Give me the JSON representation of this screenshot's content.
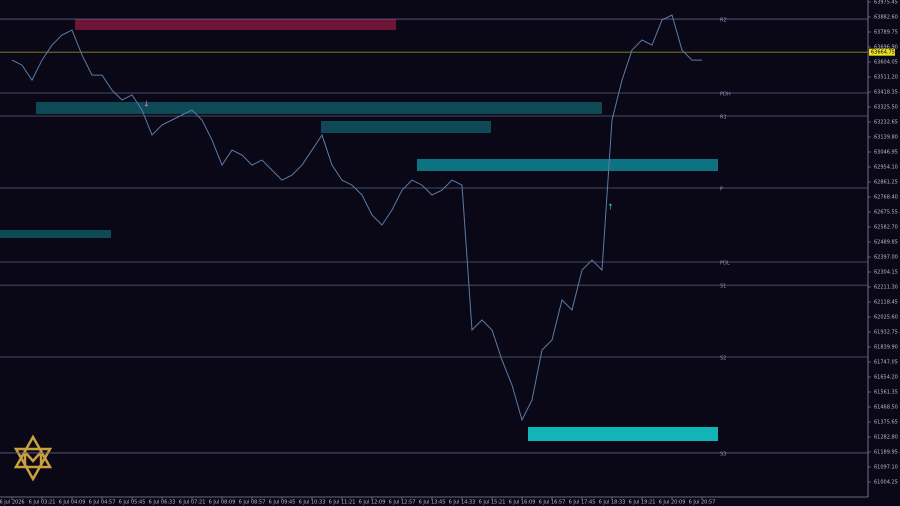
{
  "chart_data": {
    "type": "line",
    "categories": [
      "6 Jul 2026",
      null,
      null,
      "6 Jul 03:21",
      null,
      null,
      "6 Jul 04:09",
      null,
      null,
      "6 Jul 04:57",
      null,
      null,
      "6 Jul 05:45",
      null,
      null,
      "6 Jul 06:33",
      null,
      null,
      "6 Jul 07:21",
      null,
      null,
      "6 Jul 08:09",
      null,
      null,
      "6 Jul 08:57",
      null,
      null,
      "6 Jul 09:45",
      null,
      null,
      "6 Jul 10:33",
      null,
      null,
      "6 Jul 11:21",
      null,
      null,
      "6 Jul 12:09",
      null,
      null,
      "6 Jul 12:57",
      null,
      null,
      "6 Jul 13:45",
      null,
      null,
      "6 Jul 14:33",
      null,
      null,
      "6 Jul 15:21",
      null,
      null,
      "6 Jul 16:09",
      null,
      null,
      "6 Jul 16:57",
      null,
      null,
      "6 Jul 17:45",
      null,
      null,
      "6 Jul 18:33",
      null,
      null,
      "6 Jul 19:21",
      null,
      null,
      "6 Jul 20:09",
      null,
      null,
      "6 Jul 20:57"
    ],
    "values": [
      63616,
      63585,
      63492,
      63616,
      63709,
      63771,
      63802,
      63647,
      63523,
      63523,
      63430,
      63369,
      63400,
      63307,
      63152,
      63214,
      63245,
      63276,
      63307,
      63245,
      63121,
      62966,
      63059,
      63028,
      62966,
      62997,
      62935,
      62873,
      62904,
      62966,
      63059,
      63152,
      62966,
      62873,
      62842,
      62781,
      62657,
      62595,
      62688,
      62811,
      62873,
      62842,
      62781,
      62811,
      62873,
      62842,
      61945,
      62007,
      61945,
      61759,
      61604,
      61388,
      61512,
      61821,
      61883,
      62131,
      62069,
      62316,
      62378,
      62316,
      63245,
      63492,
      63678,
      63740,
      63709,
      63864,
      63895,
      63678,
      63616,
      63616
    ],
    "color": "#5b7ba8",
    "ylim": [
      60911.4,
      63987.85
    ],
    "yticks": [
      {
        "value": 61004.25,
        "label": "61004.25"
      },
      {
        "value": 61097.1,
        "label": "61097.10"
      },
      {
        "value": 61189.95,
        "label": "61189.95"
      },
      {
        "value": 61282.8,
        "label": "61282.80"
      },
      {
        "value": 61375.65,
        "label": "61375.65"
      },
      {
        "value": 61468.5,
        "label": "61468.50"
      },
      {
        "value": 61561.35,
        "label": "61561.35"
      },
      {
        "value": 61654.2,
        "label": "61654.20"
      },
      {
        "value": 61747.05,
        "label": "61747.05"
      },
      {
        "value": 61839.9,
        "label": "61839.90"
      },
      {
        "value": 61932.75,
        "label": "61932.75"
      },
      {
        "value": 62025.6,
        "label": "62025.60"
      },
      {
        "value": 62118.45,
        "label": "62118.45"
      },
      {
        "value": 62211.3,
        "label": "62211.30"
      },
      {
        "value": 62304.15,
        "label": "62304.15"
      },
      {
        "value": 62397,
        "label": "62397.00"
      },
      {
        "value": 62489.85,
        "label": "62489.85"
      },
      {
        "value": 62582.7,
        "label": "62582.70"
      },
      {
        "value": 62675.55,
        "label": "62675.55"
      },
      {
        "value": 62768.4,
        "label": "62768.40"
      },
      {
        "value": 62861.25,
        "label": "62861.25"
      },
      {
        "value": 62954.1,
        "label": "62954.10"
      },
      {
        "value": 63046.95,
        "label": "63046.95"
      },
      {
        "value": 63139.8,
        "label": "63139.80"
      },
      {
        "value": 63232.65,
        "label": "63232.65"
      },
      {
        "value": 63325.5,
        "label": "63325.50"
      },
      {
        "value": 63418.35,
        "label": "63418.35"
      },
      {
        "value": 63511.2,
        "label": "63511.20"
      },
      {
        "value": 63604.05,
        "label": "63604.05"
      },
      {
        "value": 63696.9,
        "label": "63696.90"
      },
      {
        "value": 63789.75,
        "label": "63789.75"
      },
      {
        "value": 63882.6,
        "label": "63882.60"
      },
      {
        "value": 63975.45,
        "label": "63975.45"
      }
    ],
    "levels": [
      {
        "label": "R2",
        "value": 63870
      },
      {
        "label": "PDH",
        "value": 63412
      },
      {
        "label": "R1",
        "value": 63270
      },
      {
        "label": "P",
        "value": 62824
      },
      {
        "label": "PDL",
        "value": 62366
      },
      {
        "label": "S1",
        "value": 62223
      },
      {
        "label": "S2",
        "value": 61778
      },
      {
        "label": "S3",
        "value": 61184
      }
    ],
    "last_price": 63664.75
  }
}
